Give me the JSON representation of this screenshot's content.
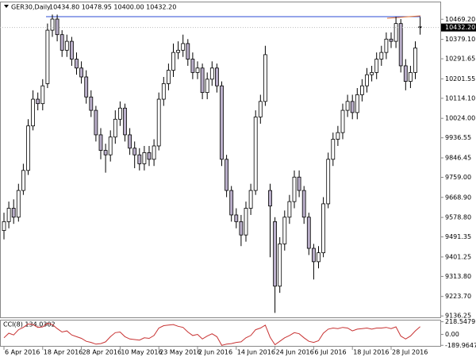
{
  "chart_data": {
    "type": "candlestick",
    "symbol": "GER30,Daily",
    "header": "10434.80 10478.95 10400.00 10432.20",
    "categories": [
      "6 Apr 2016",
      null,
      null,
      null,
      null,
      null,
      null,
      null,
      "18 Apr 2016",
      null,
      null,
      null,
      null,
      null,
      null,
      null,
      "28 Apr 2016",
      null,
      null,
      null,
      null,
      null,
      null,
      null,
      "10 May 2016",
      null,
      null,
      null,
      null,
      null,
      null,
      null,
      "23 May 2016",
      null,
      null,
      null,
      null,
      null,
      null,
      null,
      "2 Jun 2016",
      null,
      null,
      null,
      null,
      null,
      null,
      null,
      "14 Jun 2016",
      null,
      null,
      null,
      null,
      null,
      null,
      null,
      "24 Jun 2016",
      null,
      null,
      null,
      null,
      null,
      null,
      null,
      "6 Jul 2016",
      null,
      null,
      null,
      null,
      null,
      null,
      null,
      "18 Jul 2016",
      null,
      null,
      null,
      null,
      null,
      null,
      null,
      "28 Jul 2016",
      null,
      null,
      null,
      null,
      null,
      null
    ],
    "open": [
      9520,
      9560,
      9620,
      9580,
      9700,
      9790,
      9990,
      10110,
      10090,
      10180,
      10420,
      10470,
      10400,
      10330,
      10370,
      10290,
      10250,
      10210,
      10120,
      10060,
      9950,
      9880,
      9860,
      9940,
      10020,
      10070,
      9950,
      9890,
      9860,
      9820,
      9870,
      9840,
      9900,
      10110,
      10180,
      10240,
      10320,
      10330,
      10360,
      10290,
      10230,
      10250,
      10140,
      10200,
      10250,
      10170,
      9840,
      9700,
      9590,
      9560,
      9500,
      9620,
      9700,
      10030,
      10100,
      9700,
      9560,
      9270,
      9460,
      9580,
      9650,
      9760,
      9700,
      9580,
      9440,
      9380,
      9420,
      9640,
      9840,
      9930,
      9960,
      10060,
      10100,
      10050,
      10130,
      10170,
      10220,
      10230,
      10290,
      10320,
      10380,
      10370,
      10450,
      10260,
      10190,
      10230,
      10434.8
    ],
    "high": [
      9600,
      9650,
      9660,
      9730,
      9820,
      10020,
      10150,
      10140,
      10200,
      10450,
      10490,
      10490,
      10420,
      10400,
      10390,
      10320,
      10280,
      10240,
      10150,
      10080,
      9980,
      9910,
      9970,
      10060,
      10100,
      10090,
      9980,
      9920,
      9890,
      9900,
      9900,
      9930,
      10140,
      10210,
      10270,
      10360,
      10370,
      10400,
      10380,
      10320,
      10280,
      10270,
      10230,
      10280,
      10270,
      10190,
      9860,
      9720,
      9620,
      9590,
      9650,
      9730,
      10060,
      10130,
      10350,
      9730,
      9580,
      9490,
      9610,
      9680,
      9790,
      9790,
      9720,
      9600,
      9460,
      9450,
      9670,
      9870,
      9960,
      9990,
      10090,
      10130,
      10130,
      10160,
      10200,
      10250,
      10260,
      10320,
      10350,
      10410,
      10410,
      10480,
      10470,
      10290,
      10260,
      10370,
      10478.95
    ],
    "low": [
      9480,
      9530,
      9550,
      9560,
      9680,
      9770,
      9970,
      10060,
      10060,
      10160,
      10390,
      10370,
      10300,
      10300,
      10260,
      10220,
      10180,
      10090,
      10030,
      9920,
      9840,
      9780,
      9830,
      9910,
      9990,
      9920,
      9860,
      9800,
      9790,
      9790,
      9810,
      9810,
      9880,
      10080,
      10150,
      10210,
      10290,
      10300,
      10260,
      10200,
      10200,
      10110,
      10110,
      10170,
      10140,
      9810,
      9670,
      9560,
      9530,
      9450,
      9470,
      9590,
      9680,
      10000,
      10080,
      9400,
      9150,
      9240,
      9430,
      9550,
      9620,
      9670,
      9550,
      9410,
      9300,
      9350,
      9400,
      9620,
      9810,
      9900,
      9930,
      10030,
      10020,
      10020,
      10100,
      10140,
      10190,
      10200,
      10260,
      10290,
      10340,
      10340,
      10230,
      10150,
      10160,
      10200,
      10400
    ],
    "close": [
      9560,
      9620,
      9580,
      9700,
      9790,
      9990,
      10110,
      10090,
      10170,
      10420,
      10470,
      10400,
      10330,
      10370,
      10290,
      10250,
      10210,
      10120,
      10060,
      9950,
      9880,
      9860,
      9940,
      10020,
      10070,
      9950,
      9890,
      9860,
      9820,
      9870,
      9840,
      9900,
      10110,
      10180,
      10240,
      10320,
      10330,
      10360,
      10290,
      10230,
      10250,
      10140,
      10200,
      10250,
      10170,
      9840,
      9700,
      9590,
      9560,
      9500,
      9620,
      9700,
      10030,
      10100,
      10310,
      9630,
      9270,
      9460,
      9580,
      9650,
      9760,
      9700,
      9580,
      9440,
      9380,
      9420,
      9640,
      9840,
      9930,
      9960,
      10060,
      10100,
      10050,
      10130,
      10170,
      10220,
      10230,
      10290,
      10320,
      10380,
      10370,
      10450,
      10260,
      10190,
      10230,
      10340,
      10432.2
    ],
    "bull_color": "#ffffff",
    "bear_color": "#b9aec9",
    "wick_color": "#000000",
    "ylim": [
      9130,
      10545
    ],
    "yticks": [
      {
        "value": 10469.2,
        "label": "10469.20"
      },
      {
        "value": 10379.1,
        "label": "10379.10"
      },
      10291.65,
      10201.55,
      {
        "value": 10114.1,
        "label": "10114.10"
      },
      {
        "value": 10024,
        "label": "10024.00"
      },
      9936.55,
      9846.45,
      {
        "value": 9759,
        "label": "9759.00"
      },
      {
        "value": 9668.9,
        "label": "9668.90"
      },
      {
        "value": 9578.8,
        "label": "9578.80"
      },
      9491.35,
      9401.25,
      {
        "value": 9313.8,
        "label": "9313.80"
      },
      {
        "value": 9223.7,
        "label": "9223.70"
      },
      9136.25
    ],
    "current_price": {
      "value": 10432.2,
      "label": "10432.20"
    },
    "level": {
      "value": 10481,
      "color": "#2b4bd6"
    },
    "indicator": {
      "label": "CCI(8) 134.0302",
      "color": "#c83232",
      "ylim": [
        -200,
        240
      ],
      "yticks": [
        218.5479,
        {
          "value": 0,
          "label": "0.00"
        },
        -189.9647
      ],
      "values": [
        -60,
        20,
        -10,
        80,
        120,
        180,
        170,
        120,
        130,
        190,
        170,
        100,
        40,
        60,
        -10,
        -40,
        -70,
        -120,
        -140,
        -170,
        -160,
        -130,
        -40,
        30,
        40,
        -40,
        -80,
        -90,
        -100,
        -60,
        -70,
        -20,
        110,
        150,
        160,
        170,
        140,
        120,
        40,
        -20,
        0,
        -80,
        -30,
        10,
        -40,
        -190,
        -170,
        -160,
        -140,
        -130,
        -60,
        -20,
        80,
        110,
        160,
        -50,
        -180,
        -120,
        -60,
        -20,
        30,
        10,
        -60,
        -120,
        -140,
        -110,
        20,
        90,
        110,
        100,
        120,
        110,
        60,
        90,
        100,
        110,
        90,
        110,
        110,
        120,
        100,
        130,
        -30,
        -80,
        -30,
        60,
        134.0302
      ]
    }
  }
}
